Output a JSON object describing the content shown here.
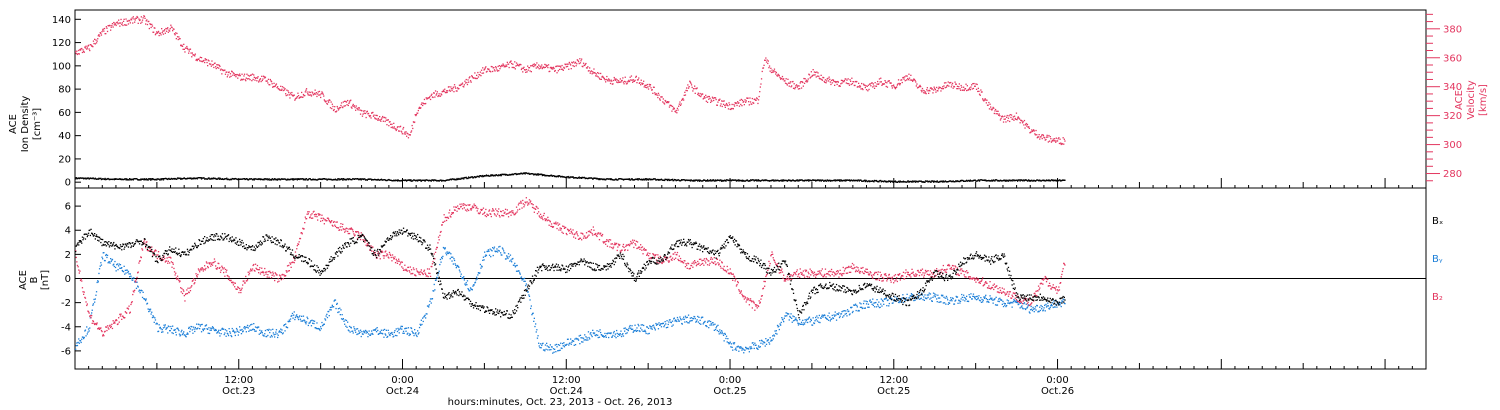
{
  "colors": {
    "density": "#000000",
    "velocity": "#e3365f",
    "bx": "#000000",
    "by": "#1c7fd8",
    "bz": "#e3365f"
  },
  "x_axis": {
    "title": "hours:minutes, Oct. 23, 2013 - Oct. 26, 2013",
    "range_hours": [
      0,
      99
    ],
    "major_ticks": [
      {
        "hour": 12,
        "time": "12:00",
        "date": "Oct.23"
      },
      {
        "hour": 24,
        "time": "0:00",
        "date": "Oct.24"
      },
      {
        "hour": 36,
        "time": "12:00",
        "date": "Oct.24"
      },
      {
        "hour": 48,
        "time": "0:00",
        "date": "Oct.25"
      },
      {
        "hour": 60,
        "time": "12:00",
        "date": "Oct.25"
      },
      {
        "hour": 72,
        "time": "0:00",
        "date": "Oct.26"
      }
    ]
  },
  "chart_data": [
    {
      "type": "scatter",
      "panel": "top",
      "ylabel_left": [
        "ACE",
        "Ion Density",
        "[cm⁻³]"
      ],
      "ylabel_right": [
        "ACE",
        "Velocity",
        "[km/s]"
      ],
      "ylim_left": [
        -5,
        148
      ],
      "yticks_left": [
        0,
        20,
        40,
        60,
        80,
        100,
        120,
        140
      ],
      "ylim_right": [
        270,
        393
      ],
      "yticks_right": [
        280,
        300,
        320,
        340,
        360,
        380
      ],
      "series": [
        {
          "axis": "left",
          "x": [
            0,
            3,
            6,
            9,
            12,
            15,
            18,
            21,
            24,
            27,
            30,
            33,
            36,
            39,
            42,
            45,
            48,
            51,
            54,
            57,
            60,
            63,
            66,
            69,
            72.5
          ],
          "y": [
            4,
            3,
            3,
            4,
            3,
            3,
            3,
            3,
            2,
            2,
            6,
            8,
            5,
            3,
            3,
            2,
            2,
            2,
            2,
            2,
            1,
            1,
            2,
            2,
            2
          ]
        },
        {
          "name": "Velocity",
          "axis": "right",
          "x": [
            0,
            1,
            2,
            3,
            4,
            5,
            6,
            7,
            8,
            9,
            10,
            11,
            12,
            13,
            14,
            15,
            16,
            17,
            18,
            19,
            20,
            21,
            22,
            23,
            24,
            24.5,
            25,
            26,
            27,
            28,
            29,
            30,
            31,
            32,
            33,
            34,
            35,
            36,
            37,
            38,
            39,
            40,
            41,
            42,
            43,
            44,
            45,
            46,
            47,
            48,
            49,
            50,
            50.5,
            51,
            52,
            53,
            54,
            55,
            56,
            57,
            58,
            59,
            60,
            61,
            62,
            63,
            64,
            65,
            66,
            67,
            68,
            69,
            70,
            71,
            72,
            72.5
          ],
          "y": [
            364,
            367,
            378,
            384,
            386,
            387,
            377,
            381,
            367,
            360,
            356,
            350,
            347,
            347,
            345,
            339,
            333,
            337,
            335,
            325,
            330,
            322,
            320,
            315,
            310,
            306,
            324,
            334,
            337,
            340,
            346,
            352,
            353,
            356,
            352,
            355,
            352,
            354,
            358,
            350,
            345,
            344,
            346,
            341,
            332,
            323,
            342,
            333,
            330,
            327,
            330,
            331,
            360,
            352,
            344,
            340,
            350,
            345,
            343,
            344,
            339,
            344,
            341,
            348,
            338,
            338,
            342,
            340,
            341,
            326,
            318,
            320,
            310,
            305,
            303,
            303
          ]
        }
      ]
    },
    {
      "type": "scatter",
      "panel": "bottom",
      "ylabel_left": [
        "ACE",
        "B",
        "[nT]"
      ],
      "ylim": [
        -7.5,
        7.5
      ],
      "yticks": [
        -6,
        -4,
        -2,
        0,
        2,
        4,
        6
      ],
      "legend": [
        "Bₓ",
        "Bᵧ",
        "B₂"
      ],
      "legend_placement": "right",
      "series": [
        {
          "name": "Bₓ",
          "x": [
            0,
            1,
            2,
            3,
            4,
            5,
            6,
            7,
            8,
            9,
            10,
            11,
            12,
            13,
            14,
            15,
            16,
            17,
            18,
            19,
            20,
            21,
            22,
            23,
            24,
            25,
            26,
            27,
            28,
            29,
            30,
            31,
            32,
            33,
            34,
            35,
            36,
            37,
            38,
            39,
            40,
            41,
            42,
            43,
            44,
            45,
            46,
            47,
            48,
            49,
            50,
            51,
            52,
            53,
            54,
            55,
            56,
            57,
            58,
            59,
            60,
            61,
            62,
            63,
            64,
            65,
            66,
            67,
            68,
            69,
            70,
            71,
            72,
            72.5
          ],
          "y": [
            2.5,
            4.0,
            3.0,
            2.7,
            2.8,
            3.2,
            1.5,
            2.5,
            2.0,
            3.0,
            3.5,
            3.5,
            3.0,
            2.5,
            3.5,
            3.0,
            2.0,
            1.5,
            0.5,
            2.0,
            3.0,
            3.5,
            2.0,
            3.5,
            4.0,
            3.5,
            2.5,
            -1.5,
            -1.0,
            -2.0,
            -2.5,
            -2.8,
            -3.0,
            -1.0,
            1.0,
            1.0,
            0.8,
            1.5,
            1.0,
            1.0,
            2.0,
            0.0,
            1.5,
            1.5,
            3.0,
            3.0,
            2.5,
            2.0,
            3.5,
            2.0,
            1.5,
            0.5,
            1.5,
            -3.0,
            -1.0,
            -0.5,
            -0.8,
            -1.0,
            -0.5,
            -1.0,
            -1.5,
            -2.0,
            -1.0,
            0.5,
            0.0,
            1.5,
            2.0,
            1.5,
            2.0,
            -1.5,
            -1.5,
            -1.5,
            -2.0,
            -1.5
          ]
        },
        {
          "name": "Bᵧ",
          "x": [
            0,
            1,
            2,
            3,
            4,
            5,
            6,
            7,
            8,
            9,
            10,
            11,
            12,
            13,
            14,
            15,
            16,
            17,
            18,
            19,
            20,
            21,
            22,
            23,
            24,
            25,
            26,
            27,
            28,
            29,
            30,
            31,
            32,
            33,
            34,
            35,
            36,
            37,
            38,
            39,
            40,
            41,
            42,
            43,
            44,
            45,
            46,
            47,
            48,
            49,
            50,
            51,
            52,
            53,
            54,
            55,
            56,
            57,
            58,
            59,
            60,
            61,
            62,
            63,
            64,
            65,
            66,
            67,
            68,
            69,
            70,
            71,
            72,
            72.5
          ],
          "y": [
            -5.5,
            -4.0,
            2.0,
            1.0,
            0.5,
            -1.5,
            -4.0,
            -4.2,
            -4.5,
            -4.0,
            -4.2,
            -4.5,
            -4.3,
            -4.0,
            -4.5,
            -4.5,
            -3.0,
            -3.5,
            -4.0,
            -2.0,
            -4.0,
            -4.5,
            -4.3,
            -4.6,
            -4.2,
            -4.5,
            -2.0,
            2.5,
            1.0,
            -1.0,
            2.0,
            2.5,
            1.5,
            -0.5,
            -5.5,
            -5.8,
            -5.3,
            -5.0,
            -4.5,
            -4.5,
            -4.5,
            -4.0,
            -4.2,
            -3.8,
            -3.5,
            -3.3,
            -3.5,
            -4.0,
            -5.5,
            -5.8,
            -5.5,
            -5.0,
            -3.0,
            -3.5,
            -3.5,
            -3.2,
            -3.0,
            -2.5,
            -2.0,
            -2.0,
            -1.8,
            -1.5,
            -1.5,
            -1.5,
            -1.8,
            -1.6,
            -1.5,
            -1.7,
            -2.0,
            -2.0,
            -2.5,
            -2.3,
            -2.0,
            -2.0
          ]
        },
        {
          "name": "B₂",
          "x": [
            0,
            1,
            2,
            3,
            4,
            5,
            6,
            7,
            8,
            9,
            10,
            11,
            12,
            13,
            14,
            15,
            16,
            17,
            18,
            19,
            20,
            21,
            22,
            23,
            24,
            25,
            26,
            27,
            28,
            29,
            30,
            31,
            32,
            33,
            34,
            35,
            36,
            37,
            38,
            39,
            40,
            41,
            42,
            43,
            44,
            45,
            46,
            47,
            48,
            49,
            50,
            51,
            52,
            53,
            54,
            55,
            56,
            57,
            58,
            59,
            60,
            61,
            62,
            63,
            64,
            65,
            66,
            67,
            68,
            69,
            70,
            71,
            72,
            72.5
          ],
          "y": [
            2.0,
            -3.0,
            -4.5,
            -3.5,
            -2.5,
            3.0,
            2.0,
            1.5,
            -1.5,
            0.5,
            1.5,
            0.5,
            -1.0,
            1.0,
            0.5,
            0.0,
            1.5,
            5.5,
            5.0,
            4.5,
            4.0,
            3.5,
            2.0,
            2.0,
            1.0,
            0.5,
            0.5,
            5.0,
            6.0,
            6.0,
            5.5,
            5.5,
            5.5,
            6.5,
            5.5,
            4.5,
            4.0,
            3.5,
            4.0,
            3.0,
            2.5,
            3.0,
            2.0,
            1.5,
            2.0,
            1.0,
            1.5,
            1.5,
            0.5,
            -1.5,
            -2.5,
            2.0,
            0.0,
            0.5,
            0.5,
            0.5,
            0.5,
            1.0,
            0.5,
            0.2,
            0.0,
            0.5,
            0.5,
            0.5,
            1.0,
            0.5,
            0.0,
            -0.5,
            -1.0,
            -1.5,
            -2.0,
            0.0,
            -1.0,
            1.5
          ]
        }
      ]
    }
  ]
}
